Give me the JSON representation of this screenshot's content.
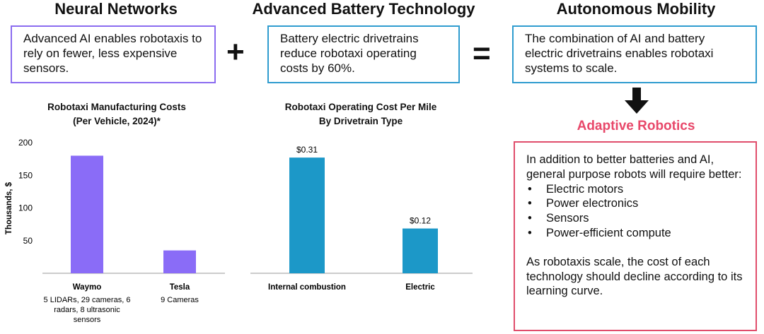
{
  "columns": {
    "neural": {
      "title": "Neural Networks",
      "text": "Advanced AI enables robotaxis to rely on fewer, less expensive sensors."
    },
    "battery": {
      "title": "Advanced Battery Technology",
      "text": "Battery electric drivetrains reduce robotaxi operating costs by 60%."
    },
    "mobility": {
      "title": "Autonomous Mobility",
      "text": "The combination of AI and battery electric drivetrains enables robotaxi systems to scale."
    }
  },
  "operators": {
    "plus": "+",
    "equals": "="
  },
  "adaptive": {
    "title": "Adaptive Robotics",
    "intro": "In addition to better batteries and AI, general purpose robots will require better:",
    "bullets": [
      "Electric motors",
      "Power electronics",
      "Sensors",
      "Power-efficient compute"
    ],
    "closing": "As robotaxis scale, the cost of each technology should decline according to its learning curve."
  },
  "colors": {
    "purple": "#8b6cf0",
    "purple_bar": "#8a6cf7",
    "blue": "#2f9ccf",
    "blue_bar": "#1c98c8",
    "red": "#e8486a"
  },
  "chart_data": [
    {
      "type": "bar",
      "title_line1": "Robotaxi Manufacturing Costs",
      "title_line2": "(Per Vehicle, 2024)*",
      "ylabel": "Thousands, $",
      "ylim": [
        0,
        200
      ],
      "yticks": [
        50,
        100,
        150,
        200
      ],
      "categories": [
        "Waymo",
        "Tesla"
      ],
      "category_notes": [
        "5 LIDARs, 29 cameras, 6 radars, 8 ultrasonic sensors",
        "9 Cameras"
      ],
      "values": [
        180,
        35
      ]
    },
    {
      "type": "bar",
      "title_line1": "Robotaxi Operating Cost Per Mile",
      "title_line2": "By Drivetrain Type",
      "categories": [
        "Internal combustion",
        "Electric"
      ],
      "values": [
        0.31,
        0.12
      ],
      "value_labels": [
        "$0.31",
        "$0.12"
      ],
      "ylim": [
        0,
        0.35
      ]
    }
  ]
}
